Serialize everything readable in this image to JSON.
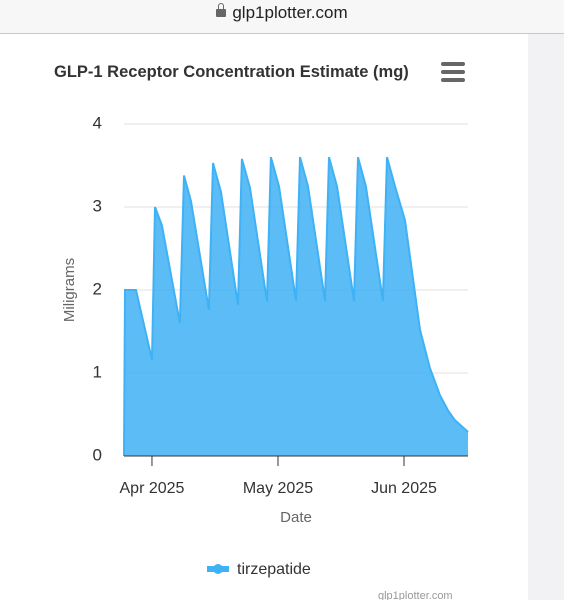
{
  "browser": {
    "url": "glp1plotter.com"
  },
  "credits": "glp1plotter.com",
  "chart_data": {
    "type": "area",
    "title": "GLP-1 Receptor Concentration Estimate (mg)",
    "x_label": "Date",
    "y_label": "Miligrams",
    "x": [
      3.778,
      3.786,
      3.873,
      4.0,
      4.024,
      4.079,
      4.222,
      4.254,
      4.31,
      4.452,
      4.484,
      4.548,
      4.683,
      4.714,
      4.778,
      4.913,
      4.944,
      5.008,
      5.143,
      5.175,
      5.238,
      5.373,
      5.405,
      5.468,
      5.603,
      5.635,
      5.698,
      5.833,
      5.865,
      5.929,
      6.008,
      6.048,
      6.127,
      6.206,
      6.286,
      6.349,
      6.405,
      6.508
    ],
    "series": [
      {
        "name": "tirzepatide",
        "color": "#3fb1f5",
        "values": [
          0,
          2,
          2,
          1.16,
          3.0,
          2.78,
          1.6,
          3.38,
          3.07,
          1.76,
          3.53,
          3.18,
          1.82,
          3.58,
          3.23,
          1.86,
          3.6,
          3.25,
          1.87,
          3.6,
          3.25,
          1.87,
          3.6,
          3.25,
          1.87,
          3.6,
          3.25,
          1.87,
          3.6,
          3.25,
          2.84,
          2.4,
          1.52,
          1.06,
          0.73,
          0.55,
          0.43,
          0.29
        ]
      }
    ],
    "xlim": [
      3.778,
      6.508
    ],
    "xticks": [
      {
        "value": 4,
        "label": "Apr 2025"
      },
      {
        "value": 5,
        "label": "May 2025"
      },
      {
        "value": 6,
        "label": "Jun 2025"
      }
    ],
    "ylim": [
      0,
      4
    ],
    "yticks": [
      0,
      1,
      2,
      3,
      4
    ],
    "grid": true,
    "legend": "bottom"
  }
}
